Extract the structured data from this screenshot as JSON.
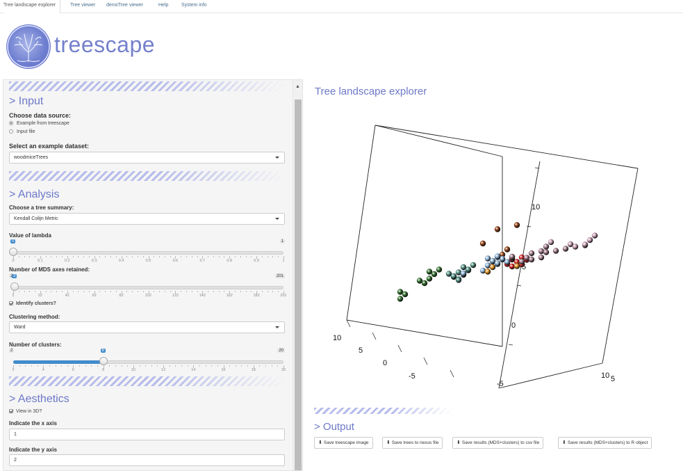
{
  "nav": {
    "tabs": [
      "Tree landscape explorer",
      "Tree viewer",
      "densiTree viewer",
      "Help",
      "System info"
    ]
  },
  "brand": {
    "name": "treescape"
  },
  "sidebar": {
    "input": {
      "title": "> Input",
      "data_source_label": "Choose data source:",
      "options": [
        "Example from treescape",
        "Input file"
      ],
      "selected_option": "Example from treescape",
      "example_label": "Select an example dataset:",
      "example_value": "woodmiceTrees"
    },
    "analysis": {
      "title": "> Analysis",
      "summary_label": "Choose a tree summary:",
      "summary_value": "Kendall Colijn Metric",
      "lambda": {
        "label": "Value of lambda",
        "min": "0",
        "max": "1",
        "value": "0",
        "value_fraction": 0,
        "ticks": [
          "0",
          "0.1",
          "0.2",
          "0.3",
          "0.4",
          "0.5",
          "0.6",
          "0.7",
          "0.8",
          "0.9",
          "1"
        ]
      },
      "mds": {
        "label": "Number of MDS axes retained:",
        "min": "2",
        "max": "201",
        "value": "3",
        "value_fraction": 0.005,
        "ticks": [
          "2",
          "22",
          "42",
          "62",
          "82",
          "102",
          "122",
          "142",
          "162",
          "182",
          "201"
        ]
      },
      "identify_label": "Identify clusters?",
      "identify_checked": true,
      "clustering_label": "Clustering method:",
      "clustering_value": "Ward",
      "clusters": {
        "label": "Number of clusters:",
        "min": "2",
        "max": "20",
        "value": "8",
        "value_fraction": 0.333,
        "ticks": [
          "2",
          "4",
          "6",
          "8",
          "10",
          "12",
          "14",
          "16",
          "18",
          "20"
        ]
      }
    },
    "aesthetics": {
      "title": "> Aesthetics",
      "view3d_label": "View in 3D?",
      "view3d_checked": true,
      "x_axis_label": "Indicate the x axis",
      "x_axis_value": "1",
      "y_axis_label": "Indicate the y axis",
      "y_axis_value": "2"
    }
  },
  "main": {
    "title": "Tree landscape explorer",
    "output_title": "> Output",
    "buttons": [
      "Save treescape image",
      "Save trees to nexus file",
      "Save results (MDS+clusters) to csv file",
      "Save results (MDS+clusters) to R object"
    ]
  },
  "chart_data": {
    "type": "scatter",
    "title": "",
    "axis_tick_labels": {
      "left_axis": [
        "10",
        "5",
        "0",
        "-5"
      ],
      "bottom_axis": [
        "-5",
        "0",
        "5",
        "10"
      ],
      "vertical_axis": [
        "10",
        "5",
        "0",
        "-5"
      ]
    },
    "clusters": [
      {
        "color": "#8b3a0e",
        "points": [
          [
            -6,
            11,
            9
          ],
          [
            -4,
            11,
            9
          ],
          [
            -7,
            10,
            7
          ],
          [
            -5,
            10,
            5
          ],
          [
            -4,
            9,
            5
          ]
        ]
      },
      {
        "color": "#cc2222",
        "points": [
          [
            -3,
            8,
            3
          ],
          [
            -2,
            8,
            3
          ],
          [
            -3,
            7,
            2
          ],
          [
            -2,
            7,
            2
          ],
          [
            -2,
            6,
            2
          ],
          [
            -1,
            6,
            1
          ],
          [
            -2,
            6,
            1
          ],
          [
            -1,
            7,
            2
          ]
        ]
      },
      {
        "color": "#2f6b2a",
        "points": [
          [
            -9,
            3,
            1
          ],
          [
            -8,
            3,
            1
          ],
          [
            -8,
            2,
            0
          ],
          [
            -9,
            1,
            -1
          ],
          [
            -8,
            1,
            -1
          ],
          [
            -8,
            0,
            -2
          ],
          [
            -10,
            -1,
            -3
          ],
          [
            -9,
            -2,
            -4
          ],
          [
            -9,
            -3,
            -5
          ]
        ]
      },
      {
        "color": "#4d8a7e",
        "points": [
          [
            -5,
            1,
            -1
          ],
          [
            -4,
            1,
            -1
          ],
          [
            -5,
            0,
            -2
          ],
          [
            -4,
            0,
            -2
          ],
          [
            -5,
            -1,
            -2
          ],
          [
            -4,
            -1,
            -3
          ],
          [
            -4,
            0,
            -1
          ],
          [
            -3,
            0,
            -1
          ],
          [
            -3,
            -1,
            -2
          ],
          [
            -4,
            -2,
            -3
          ],
          [
            -5,
            1,
            -2
          ]
        ]
      },
      {
        "color": "#8eb4d8",
        "points": [
          [
            -2,
            2,
            0
          ],
          [
            -1,
            2,
            0
          ],
          [
            -2,
            1,
            0
          ],
          [
            -1,
            1,
            -1
          ],
          [
            0,
            1,
            -1
          ],
          [
            -1,
            0,
            -1
          ],
          [
            0,
            0,
            -1
          ],
          [
            -2,
            0,
            -2
          ],
          [
            -1,
            -1,
            -2
          ],
          [
            0,
            -1,
            -2
          ],
          [
            -2,
            3,
            1
          ],
          [
            -1,
            1,
            0
          ],
          [
            0,
            2,
            0
          ],
          [
            -3,
            -2,
            -3
          ],
          [
            -2,
            -4,
            -4
          ],
          [
            1,
            0,
            -1
          ]
        ]
      },
      {
        "color": "#a07a8a",
        "points": [
          [
            3,
            3,
            1
          ],
          [
            2,
            2,
            0
          ],
          [
            3,
            2,
            0
          ],
          [
            2,
            1,
            -1
          ],
          [
            1,
            0,
            -1
          ],
          [
            3,
            -2,
            -3
          ],
          [
            4,
            -2,
            -3
          ],
          [
            5,
            -2,
            -3
          ],
          [
            6,
            -1,
            -2
          ],
          [
            7,
            -1,
            -2
          ],
          [
            6,
            -3,
            -3
          ]
        ]
      },
      {
        "color": "#c9a0b4",
        "points": [
          [
            3,
            4,
            2
          ],
          [
            7,
            0,
            -1
          ],
          [
            8,
            1,
            -1
          ],
          [
            9,
            1,
            0
          ],
          [
            9,
            0,
            -1
          ],
          [
            8,
            -1,
            -2
          ],
          [
            9,
            -1,
            -2
          ]
        ]
      },
      {
        "color": "#d98a1e",
        "points": [
          [
            1,
            -4,
            -4
          ],
          [
            1,
            -5,
            -5
          ],
          [
            3,
            -3,
            -4
          ]
        ]
      }
    ]
  }
}
